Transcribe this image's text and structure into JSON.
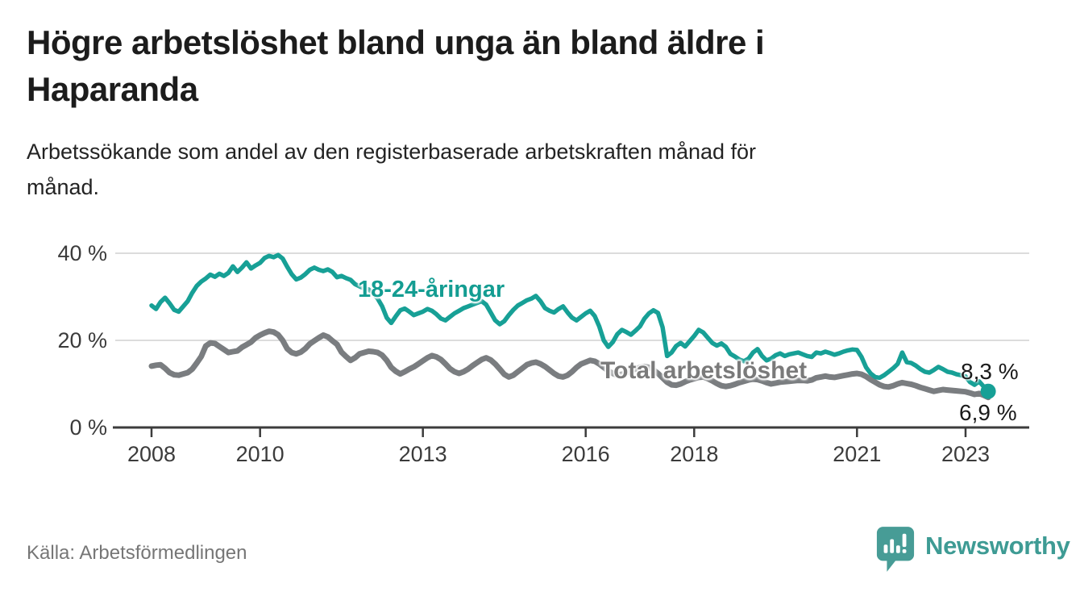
{
  "header": {
    "title_lines": [
      "Högre arbetslöshet bland unga än bland äldre i",
      "Haparanda"
    ],
    "subtitle_lines": [
      "Arbetssökande som andel av den registerbaserade arbetskraften månad för",
      "månad."
    ]
  },
  "footer": {
    "source": "Källa: Arbetsförmedlingen",
    "logo_text": "Newsworthy"
  },
  "colors": {
    "youth_line": "#17a096",
    "total_line": "#7a7d80",
    "youth_label": "#149d92",
    "total_label": "#7a7a7a",
    "grid": "#dcdcdc",
    "axis": "#3c3c3c",
    "logo_teal": "#479c96"
  },
  "chart_data": {
    "type": "line",
    "title": "Högre arbetslöshet bland unga än bland äldre i Haparanda",
    "subtitle": "Arbetssökande som andel av den registerbaserade arbetskraften månad för månad.",
    "unit": "%",
    "x_axis": {
      "start_year": 2008,
      "frequency": "monthly",
      "ticks": [
        {
          "year": 2008,
          "label": "2008"
        },
        {
          "year": 2010,
          "label": "2010"
        },
        {
          "year": 2013,
          "label": "2013"
        },
        {
          "year": 2016,
          "label": "2016"
        },
        {
          "year": 2018,
          "label": "2018"
        },
        {
          "year": 2021,
          "label": "2021"
        },
        {
          "year": 2023,
          "label": "2023"
        }
      ]
    },
    "y_axis": {
      "min": 0,
      "max": 40,
      "ticks": [
        {
          "value": 40,
          "label": "40 %"
        },
        {
          "value": 20,
          "label": "20 %"
        },
        {
          "value": 0,
          "label": "0 %"
        }
      ],
      "grid": true
    },
    "legend_position": "inline-labels",
    "series": [
      {
        "name": "18-24-åringar",
        "color": "#17a096",
        "end_value": 8.3,
        "end_label": "8,3 %",
        "monthly_start": "2008-01",
        "values": [
          28.0,
          27.2,
          28.8,
          29.8,
          28.5,
          27.0,
          26.6,
          27.8,
          29.0,
          30.9,
          32.5,
          33.5,
          34.2,
          35.1,
          34.6,
          35.3,
          34.8,
          35.5,
          37.0,
          35.7,
          36.7,
          37.9,
          36.5,
          37.2,
          37.8,
          38.9,
          39.4,
          39.1,
          39.6,
          38.8,
          36.9,
          35.2,
          34.0,
          34.4,
          35.2,
          36.2,
          36.7,
          36.2,
          35.9,
          36.3,
          35.7,
          34.5,
          34.8,
          34.3,
          33.9,
          32.9,
          32.4,
          31.9,
          31.7,
          30.8,
          29.6,
          27.8,
          25.2,
          24.0,
          25.5,
          26.9,
          27.3,
          26.6,
          25.8,
          26.2,
          26.6,
          27.2,
          26.8,
          26.0,
          25.0,
          24.6,
          25.4,
          26.2,
          26.8,
          27.4,
          27.8,
          28.2,
          28.6,
          29.0,
          28.2,
          26.4,
          24.6,
          23.7,
          24.4,
          25.8,
          27.0,
          28.0,
          28.6,
          29.2,
          29.6,
          30.2,
          29.0,
          27.4,
          26.8,
          26.4,
          27.2,
          27.8,
          26.4,
          25.2,
          24.6,
          25.4,
          26.2,
          26.8,
          25.6,
          23.2,
          20.0,
          18.5,
          19.6,
          21.4,
          22.4,
          21.9,
          21.3,
          22.2,
          23.2,
          25.0,
          26.2,
          26.9,
          26.3,
          23.0,
          16.4,
          17.2,
          18.7,
          19.4,
          18.6,
          19.8,
          21.0,
          22.4,
          21.8,
          20.6,
          19.4,
          18.8,
          19.3,
          18.5,
          16.9,
          16.3,
          15.6,
          15.2,
          15.8,
          17.2,
          18.0,
          16.4,
          15.4,
          15.8,
          16.6,
          17.0,
          16.4,
          16.8,
          17.0,
          17.2,
          16.8,
          16.4,
          16.2,
          17.2,
          17.0,
          17.4,
          17.1,
          16.7,
          17.0,
          17.4,
          17.7,
          17.9,
          17.8,
          16.2,
          13.8,
          12.4,
          11.6,
          11.4,
          12.0,
          12.8,
          13.6,
          14.6,
          17.2,
          15.0,
          14.8,
          14.2,
          13.4,
          12.8,
          12.6,
          13.2,
          13.9,
          13.4,
          12.8,
          12.6,
          12.2,
          12.0,
          11.7,
          10.4,
          9.8,
          10.6,
          9.4,
          8.3
        ]
      },
      {
        "name": "Total arbetslöshet",
        "color": "#7a7d80",
        "end_value": 6.9,
        "end_label": "6,9 %",
        "monthly_start": "2008-01",
        "values": [
          14.1,
          14.3,
          14.4,
          13.6,
          12.6,
          12.1,
          12.0,
          12.3,
          12.6,
          13.4,
          14.8,
          16.3,
          18.7,
          19.4,
          19.3,
          18.6,
          17.9,
          17.2,
          17.4,
          17.6,
          18.4,
          19.0,
          19.6,
          20.6,
          21.2,
          21.7,
          22.1,
          21.9,
          21.3,
          20.0,
          18.1,
          17.2,
          16.9,
          17.3,
          18.1,
          19.2,
          19.9,
          20.6,
          21.2,
          20.8,
          19.9,
          19.1,
          17.3,
          16.3,
          15.4,
          16.0,
          16.9,
          17.2,
          17.5,
          17.4,
          17.2,
          16.6,
          15.4,
          13.8,
          12.9,
          12.3,
          12.8,
          13.4,
          13.9,
          14.6,
          15.3,
          16.0,
          16.5,
          16.2,
          15.6,
          14.6,
          13.5,
          12.8,
          12.4,
          12.8,
          13.4,
          14.2,
          14.9,
          15.6,
          16.0,
          15.5,
          14.6,
          13.4,
          12.2,
          11.6,
          12.0,
          12.8,
          13.6,
          14.4,
          14.8,
          15.0,
          14.6,
          14.0,
          13.2,
          12.4,
          11.8,
          11.6,
          12.0,
          12.8,
          13.8,
          14.6,
          15.0,
          15.4,
          15.2,
          14.6,
          13.8,
          13.0,
          12.4,
          12.0,
          12.2,
          12.6,
          13.0,
          13.4,
          13.8,
          14.0,
          13.8,
          13.2,
          12.4,
          11.4,
          10.4,
          9.8,
          9.7,
          10.0,
          10.5,
          10.9,
          11.2,
          11.5,
          11.6,
          11.2,
          10.7,
          10.1,
          9.6,
          9.4,
          9.6,
          9.9,
          10.3,
          10.6,
          10.9,
          11.1,
          11.0,
          10.7,
          10.3,
          10.0,
          10.2,
          10.4,
          10.5,
          10.6,
          10.7,
          10.8,
          10.8,
          10.7,
          10.9,
          11.4,
          11.6,
          11.8,
          11.6,
          11.5,
          11.7,
          11.9,
          12.1,
          12.3,
          12.4,
          12.2,
          11.7,
          11.0,
          10.4,
          9.8,
          9.4,
          9.3,
          9.6,
          10.0,
          10.3,
          10.1,
          9.9,
          9.6,
          9.2,
          8.9,
          8.6,
          8.3,
          8.5,
          8.7,
          8.6,
          8.5,
          8.4,
          8.3,
          8.2,
          7.9,
          7.6,
          7.8,
          7.4,
          6.9
        ]
      }
    ]
  }
}
